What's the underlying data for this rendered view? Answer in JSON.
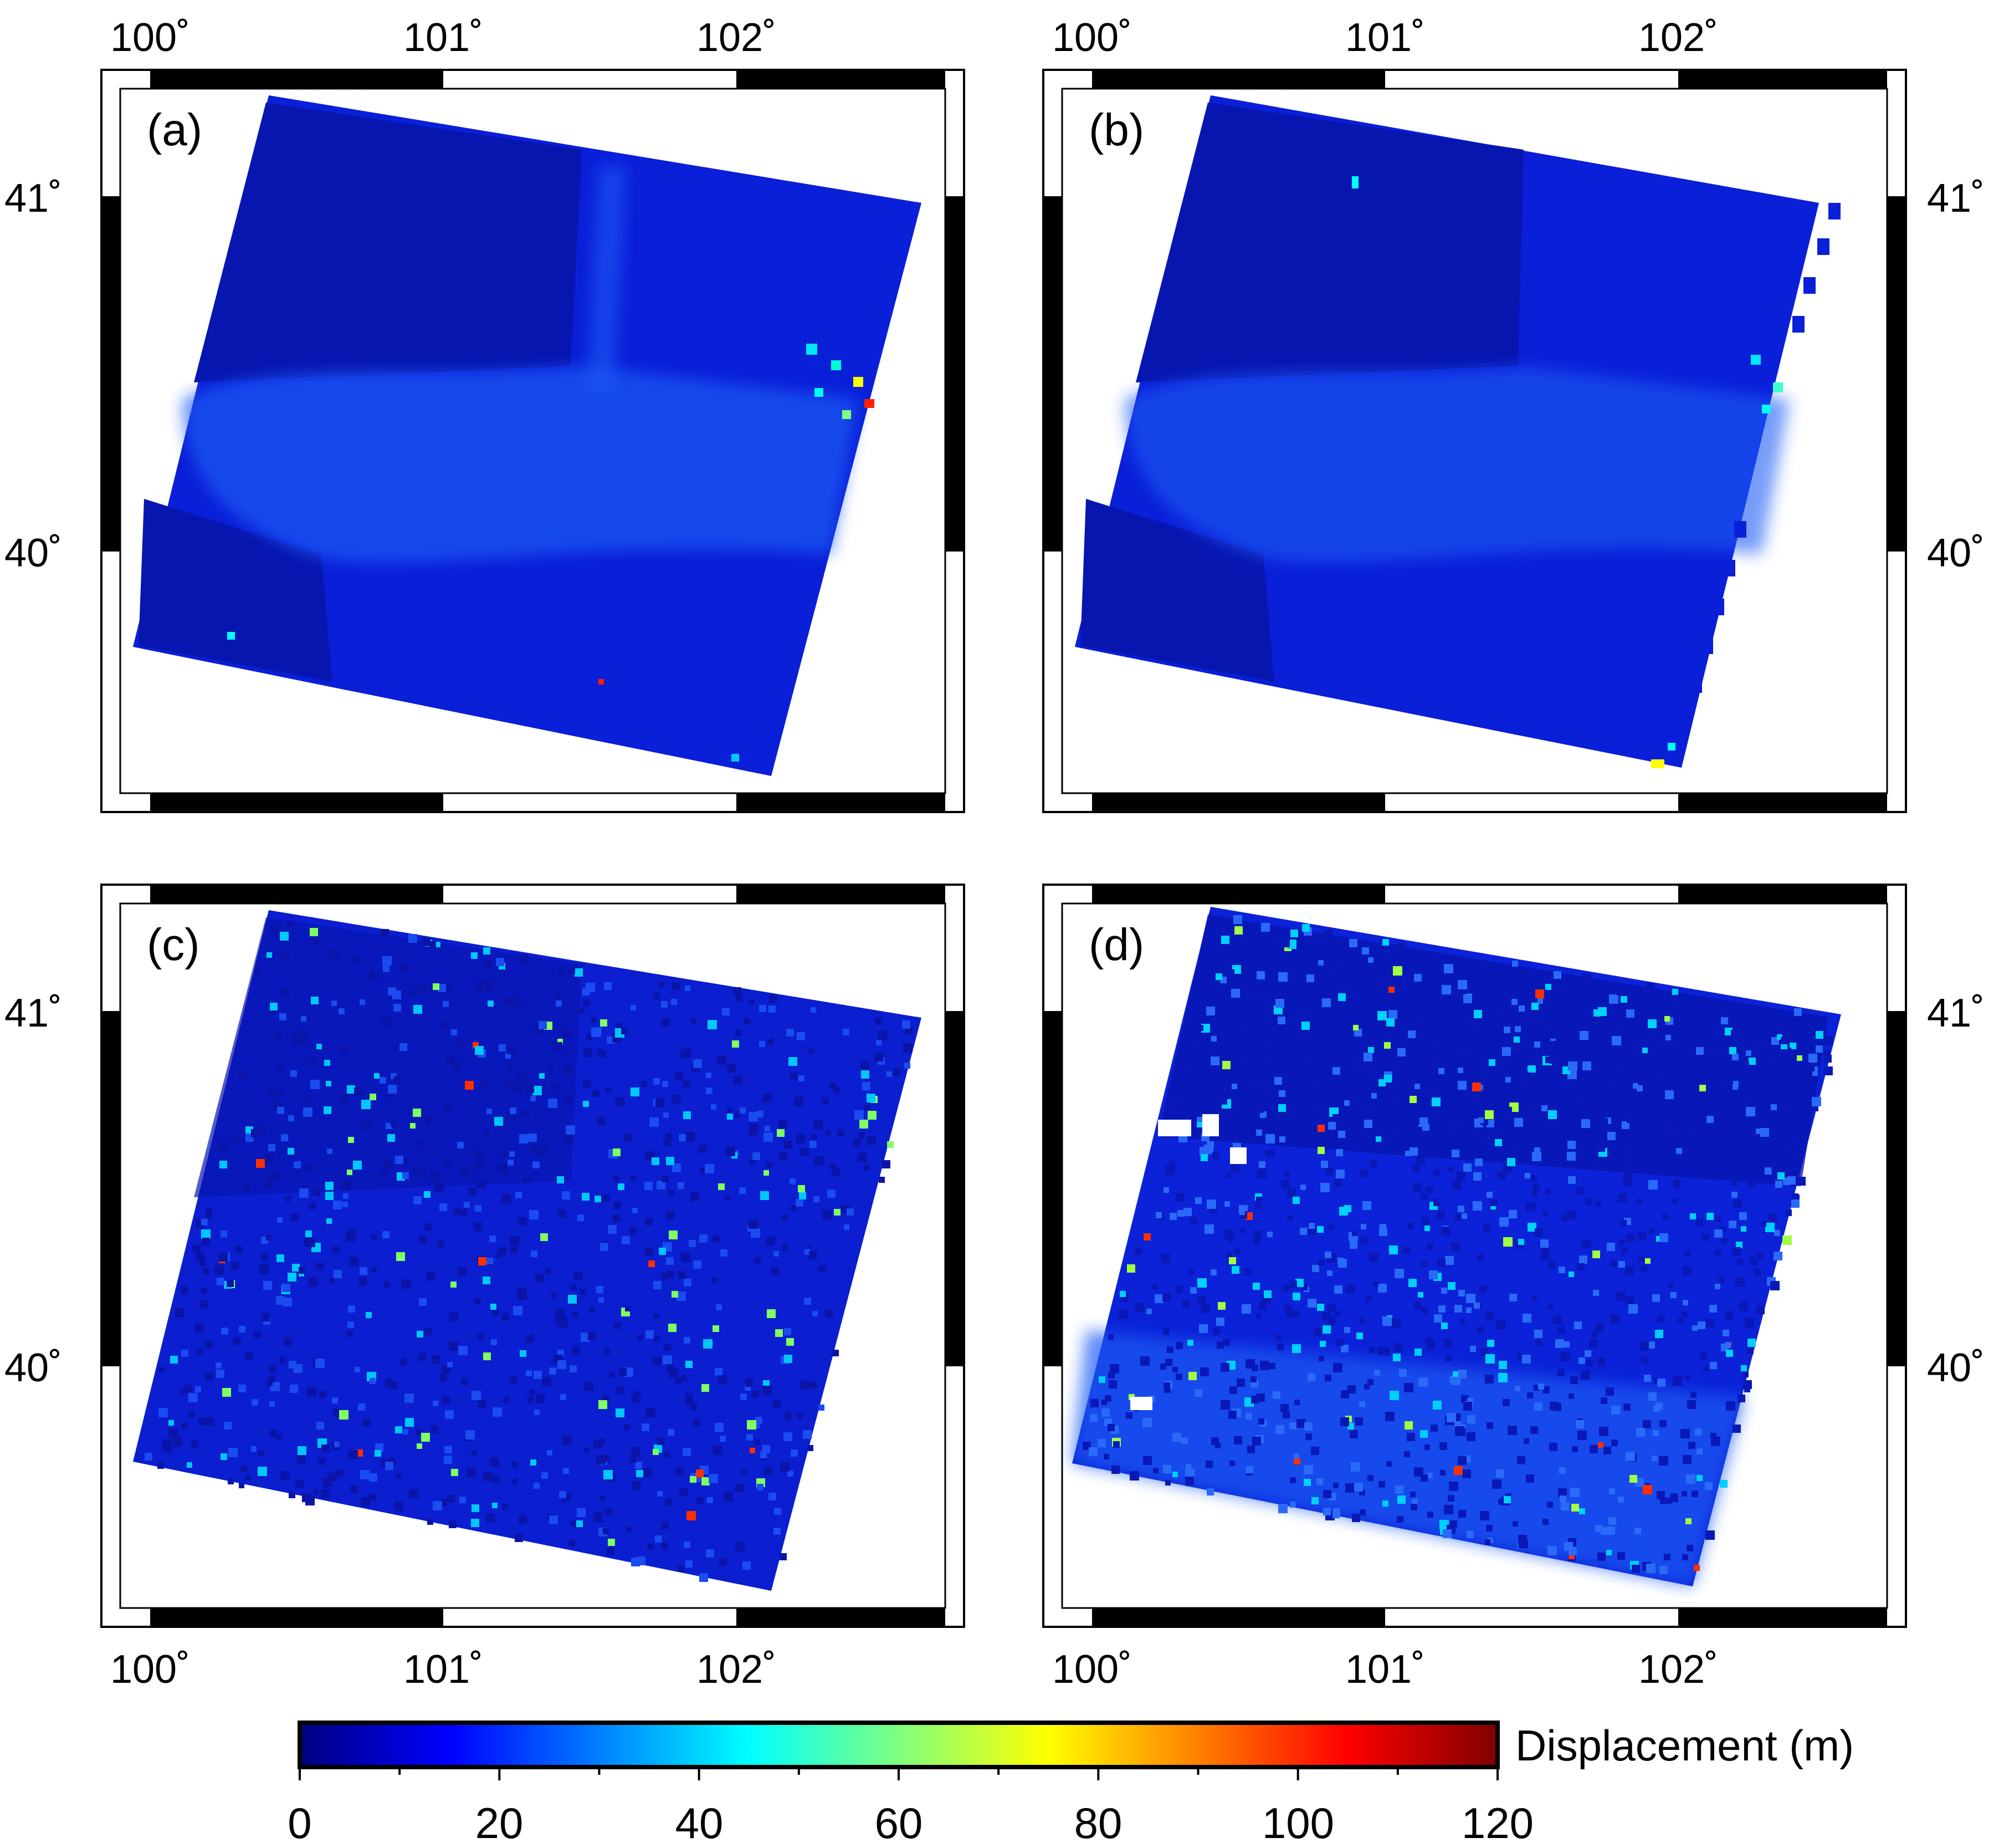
{
  "panels": [
    {
      "id": "a",
      "label": "(a)"
    },
    {
      "id": "b",
      "label": "(b)"
    },
    {
      "id": "c",
      "label": "(c)"
    },
    {
      "id": "d",
      "label": "(d)"
    }
  ],
  "longitude_ticks": [
    {
      "value": 100,
      "label": "100˚"
    },
    {
      "value": 101,
      "label": "101˚"
    },
    {
      "value": 102,
      "label": "102˚"
    }
  ],
  "latitude_ticks": [
    {
      "value": 41,
      "label": "41˚"
    },
    {
      "value": 40,
      "label": "40˚"
    }
  ],
  "extent": {
    "lon_min": 99.83,
    "lon_max": 102.73,
    "lat_min": 39.33,
    "lat_max": 41.35
  },
  "colorbar": {
    "title": "Displacement (m)",
    "min": 0,
    "max": 120,
    "ticks": [
      "0",
      "20",
      "40",
      "60",
      "80",
      "100",
      "120"
    ],
    "colors": [
      "#000080",
      "#0000ff",
      "#00ffff",
      "#ffff00",
      "#ff0000",
      "#800000"
    ]
  },
  "map_colors": {
    "background": "#0a1fd8",
    "bright": "#1e5cf5",
    "dark": "#0816b0"
  }
}
